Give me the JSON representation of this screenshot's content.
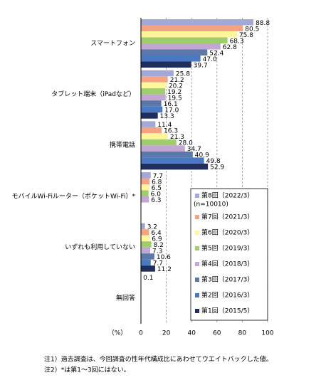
{
  "chart_data": {
    "type": "hbar",
    "categories": [
      "スマートフォン",
      "タブレット端末（iPadなど）",
      "携帯電話",
      "モバイルWi-Fiルーター（ポケットWi-Fi）*",
      "いずれも利用していない",
      "無回答"
    ],
    "series": [
      {
        "name": "第8回（2022/3）",
        "color": "#a3a9d6",
        "values": [
          88.8,
          25.8,
          11.4,
          7.7,
          3.2,
          0.1
        ],
        "value_labels": [
          "88.8",
          "25.8",
          "11.4",
          "7.7",
          "3.2",
          "0.1"
        ]
      },
      {
        "name": "第7回（2021/3）",
        "color": "#f4a483",
        "values": [
          80.5,
          21.2,
          16.3,
          6.8,
          6.4,
          null
        ],
        "value_labels": [
          "80.5",
          "21.2",
          "16.3",
          "6.8",
          "6.4",
          null
        ]
      },
      {
        "name": "第6回（2020/3）",
        "color": "#fff59a",
        "values": [
          75.8,
          20.2,
          21.3,
          6.5,
          6.9,
          null
        ],
        "value_labels": [
          "75.8",
          "20.2",
          "21.3",
          "6.5",
          "6.9",
          null
        ]
      },
      {
        "name": "第5回（2019/3）",
        "color": "#9fcd6e",
        "values": [
          68.3,
          19.2,
          28,
          6,
          8.2,
          null
        ],
        "value_labels": [
          "68.3",
          "19.2",
          "28.0",
          "6.0",
          "8.2",
          null
        ]
      },
      {
        "name": "第4回（2018/3）",
        "color": "#c2a6d3",
        "values": [
          62.8,
          19.5,
          34.7,
          6.3,
          7.3,
          null
        ],
        "value_labels": [
          "62.8",
          "19.5",
          "34.7",
          "6.3",
          "7.3",
          null
        ]
      },
      {
        "name": "第3回（2017/3）",
        "color": "#5b78a8",
        "values": [
          52.4,
          16.1,
          40.9,
          null,
          10.6,
          null
        ],
        "value_labels": [
          "52.4",
          "16.1",
          "40.9",
          null,
          "10.6",
          null
        ]
      },
      {
        "name": "第2回（2016/3）",
        "color": "#4a79c4",
        "values": [
          47,
          17,
          49.8,
          null,
          7.7,
          null
        ],
        "value_labels": [
          "47.0",
          "17.0",
          "49.8",
          null,
          "7.7",
          null
        ]
      },
      {
        "name": "第1回（2015/5）",
        "color": "#1e2f5e",
        "values": [
          39.7,
          13.3,
          52.9,
          null,
          11.2,
          null
        ],
        "value_labels": [
          "39.7",
          "13.3",
          "52.9",
          null,
          "11.2",
          null
        ]
      }
    ],
    "legend_note": "(n=10010)",
    "legend": "lower-right",
    "xlabel": "（%）",
    "xlim": [
      0,
      100
    ],
    "xticks": [
      0,
      20,
      40,
      60,
      80,
      100
    ],
    "grid": true,
    "notes": [
      "注1）過去調査は、今回調査の性年代構成比にあわせてウエイトバックした値。",
      "注2）*は第1〜3回にはない。"
    ]
  }
}
